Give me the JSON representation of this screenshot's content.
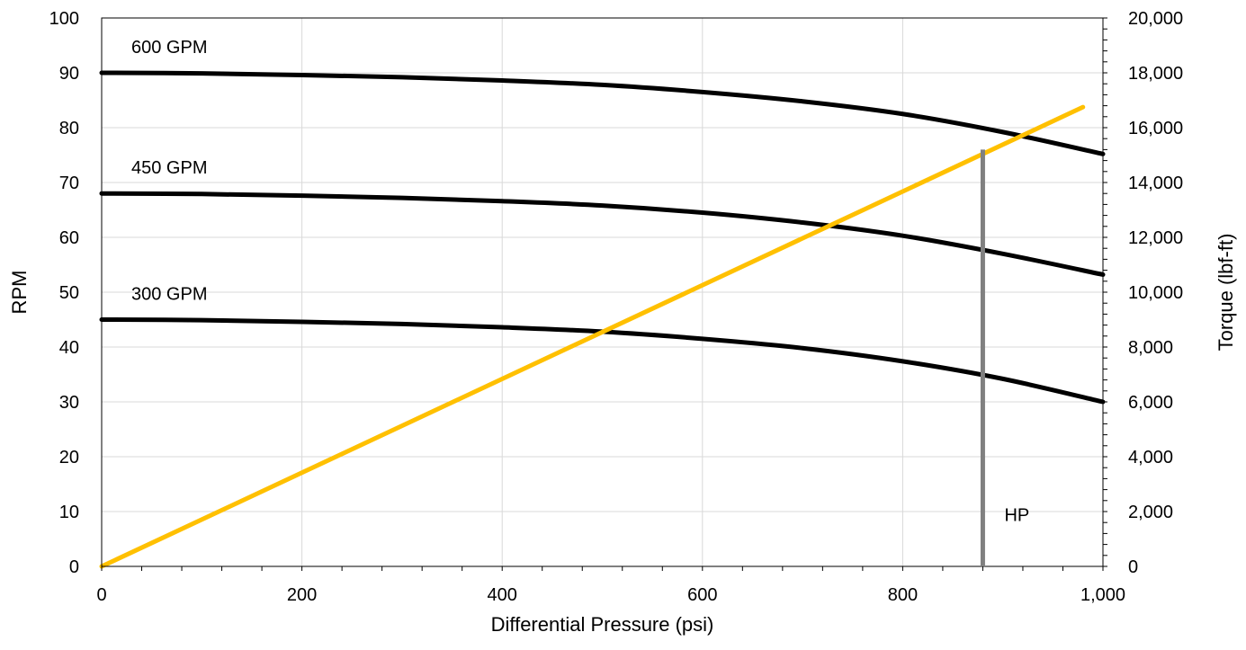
{
  "chart_data": {
    "type": "line",
    "xlabel": "Differential Pressure (psi)",
    "ylabel": "RPM",
    "y2label": "Torque (lbf-ft)",
    "xlim": [
      0,
      1000
    ],
    "ylim": [
      0,
      100
    ],
    "y2lim": [
      0,
      20000
    ],
    "grid": true,
    "x_ticks": [
      "0",
      "200",
      "400",
      "600",
      "800",
      "1,000"
    ],
    "y_ticks": [
      "0",
      "10",
      "20",
      "30",
      "40",
      "50",
      "60",
      "70",
      "80",
      "90",
      "100"
    ],
    "y2_ticks": [
      "0",
      "2,000",
      "4,000",
      "6,000",
      "8,000",
      "10,000",
      "12,000",
      "14,000",
      "16,000",
      "18,000",
      "20,000"
    ],
    "series": [
      {
        "name": "600 GPM",
        "axis": "left",
        "color": "#000000",
        "x": [
          0,
          100,
          200,
          300,
          400,
          500,
          600,
          700,
          800,
          900,
          1000
        ],
        "y": [
          90,
          89.9,
          89.6,
          89.2,
          88.6,
          87.8,
          86.5,
          84.8,
          82.5,
          79.2,
          75.2
        ]
      },
      {
        "name": "450 GPM",
        "axis": "left",
        "color": "#000000",
        "x": [
          0,
          100,
          200,
          300,
          400,
          500,
          600,
          700,
          800,
          900,
          1000
        ],
        "y": [
          68,
          67.9,
          67.6,
          67.2,
          66.6,
          65.8,
          64.5,
          62.7,
          60.3,
          57.0,
          53.2
        ]
      },
      {
        "name": "300 GPM",
        "axis": "left",
        "color": "#000000",
        "x": [
          0,
          100,
          200,
          300,
          400,
          500,
          600,
          700,
          800,
          900,
          1000
        ],
        "y": [
          45,
          44.9,
          44.6,
          44.2,
          43.6,
          42.8,
          41.5,
          39.8,
          37.4,
          34.2,
          30.0
        ]
      },
      {
        "name": "Torque",
        "axis": "right",
        "color": "#FFC000",
        "x": [
          0,
          980
        ],
        "y": [
          0,
          16750
        ]
      }
    ],
    "annotations": [
      {
        "text": "HP",
        "marker": "vertical line",
        "x": 880,
        "y_from": 0,
        "y_to": 76,
        "color": "#808080"
      }
    ]
  }
}
